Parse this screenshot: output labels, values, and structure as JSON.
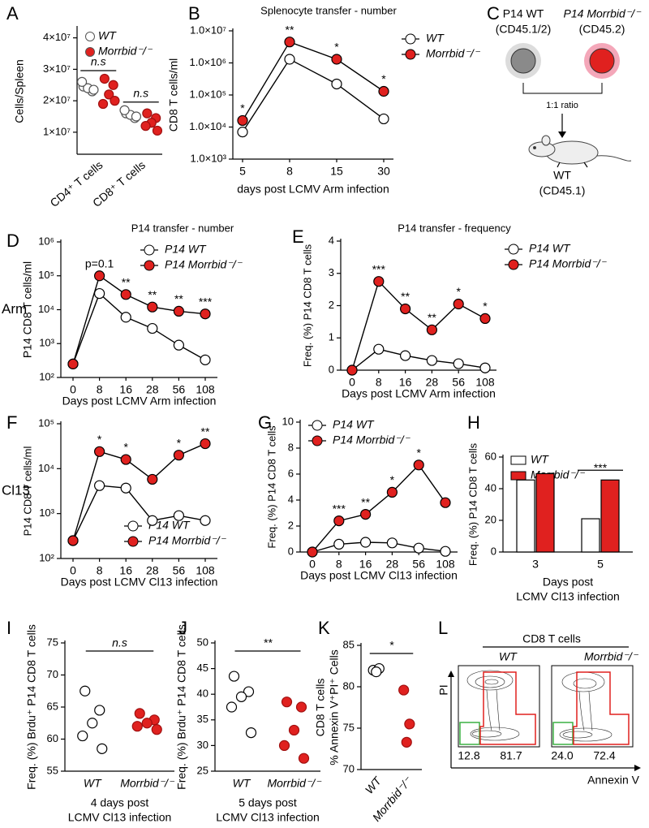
{
  "chart_data": [
    {
      "label": "A",
      "type": "dot",
      "ylabel": "Cells/Spleen",
      "categories": [
        "CD4⁺ T cells",
        "CD8⁺ T cells"
      ],
      "series": [
        {
          "name": "WT",
          "color": "#ffffff",
          "values": [
            [
              24500000,
              23000000,
              24000000,
              26000000,
              23500000
            ],
            [
              16000000,
              14500000,
              15500000,
              17000000,
              15000000
            ]
          ]
        },
        {
          "name": "Morrbid⁻/⁻",
          "color": "#e0211f",
          "values": [
            [
              27000000,
              25000000,
              22000000,
              19000000,
              20000000
            ],
            [
              16000000,
              14500000,
              13000000,
              12000000,
              10500000
            ]
          ]
        }
      ],
      "ylim": [
        3000000,
        43000000
      ],
      "yticks": [
        {
          "value": 10000000,
          "label": "1×10⁷"
        },
        {
          "value": 20000000,
          "label": "2×10⁷"
        },
        {
          "value": 30000000,
          "label": "3×10⁷"
        },
        {
          "value": 40000000,
          "label": "4×10⁷"
        }
      ],
      "annotations": [
        "n.s",
        "n.s"
      ],
      "legend": "upper right"
    },
    {
      "label": "B",
      "type": "line",
      "title": "Splenocyte transfer - number",
      "xlabel": "days post LCMV Arm infection",
      "ylabel": "CD8 T cells/ml",
      "categories": [
        "5",
        "8",
        "15",
        "30"
      ],
      "log": true,
      "ylim": [
        1000,
        10000000
      ],
      "yticks": [
        {
          "value": 1000,
          "label": "1.0×10³"
        },
        {
          "value": 10000,
          "label": "1.0×10⁴"
        },
        {
          "value": 100000,
          "label": "1.0×10⁵"
        },
        {
          "value": 1000000,
          "label": "1.0×10⁶"
        },
        {
          "value": 10000000,
          "label": "1.0×10⁷"
        }
      ],
      "series": [
        {
          "name": "WT",
          "color": "#ffffff",
          "values": [
            7000,
            1300000,
            220000,
            18000
          ]
        },
        {
          "name": "Morrbid⁻/⁻",
          "color": "#e0211f",
          "values": [
            16000,
            4500000,
            1300000,
            130000
          ]
        }
      ],
      "annotations": [
        "*",
        "**",
        "*",
        "*"
      ],
      "legend": "right"
    },
    {
      "label": "D",
      "type": "line",
      "title": "P14 transfer - number",
      "row_label": "Arm",
      "xlabel": "Days post LCMV Arm infection",
      "ylabel": "P14 CD8 T cells/ml",
      "categories": [
        "0",
        "8",
        "16",
        "28",
        "56",
        "108"
      ],
      "log": true,
      "ylim": [
        100,
        1000000
      ],
      "yticks": [
        {
          "value": 100,
          "label": "10²"
        },
        {
          "value": 1000,
          "label": "10³"
        },
        {
          "value": 10000,
          "label": "10⁴"
        },
        {
          "value": 100000,
          "label": "10⁵"
        },
        {
          "value": 1000000,
          "label": "10⁶"
        }
      ],
      "series": [
        {
          "name": "P14 WT",
          "color": "#ffffff",
          "values": [
            250,
            30000,
            6000,
            2800,
            900,
            330
          ]
        },
        {
          "name": "P14 Morrbid⁻/⁻",
          "color": "#e0211f",
          "values": [
            250,
            100000,
            28000,
            12000,
            9000,
            7500
          ]
        }
      ],
      "annotations": [
        null,
        "p=0.1",
        "**",
        "**",
        "**",
        "***"
      ],
      "legend": "upper right"
    },
    {
      "label": "E",
      "type": "line",
      "title": "P14 transfer - frequency",
      "xlabel": "Days post LCMV Arm infection",
      "ylabel": "Freq. (%) P14 CD8 T cells",
      "categories": [
        "0",
        "8",
        "16",
        "28",
        "56",
        "108"
      ],
      "ylim": [
        0,
        4
      ],
      "yticks": [
        0,
        1,
        2,
        3,
        4
      ],
      "series": [
        {
          "name": "P14 WT",
          "color": "#ffffff",
          "values": [
            0,
            0.65,
            0.45,
            0.3,
            0.2,
            0.07
          ]
        },
        {
          "name": "P14 Morrbid⁻/⁻",
          "color": "#e0211f",
          "values": [
            0,
            2.75,
            1.9,
            1.25,
            2.05,
            1.6
          ]
        }
      ],
      "annotations": [
        null,
        "***",
        "**",
        "**",
        "*",
        "*"
      ],
      "legend": "right"
    },
    {
      "label": "F",
      "type": "line",
      "row_label": "Cl13",
      "xlabel": "Days post LCMV Cl13 infection",
      "ylabel": "P14 CD8 T cells/ml",
      "categories": [
        "0",
        "8",
        "16",
        "28",
        "56",
        "108"
      ],
      "log": true,
      "ylim": [
        100,
        100000
      ],
      "yticks": [
        {
          "value": 100,
          "label": "10²"
        },
        {
          "value": 1000,
          "label": "10³"
        },
        {
          "value": 10000,
          "label": "10⁴"
        },
        {
          "value": 100000,
          "label": "10⁵"
        }
      ],
      "series": [
        {
          "name": "P14 WT",
          "color": "#ffffff",
          "values": [
            250,
            4200,
            3700,
            700,
            900,
            700
          ]
        },
        {
          "name": "P14 Morrbid⁻/⁻",
          "color": "#e0211f",
          "values": [
            250,
            24000,
            16000,
            5800,
            20000,
            36000
          ]
        }
      ],
      "annotations": [
        null,
        "*",
        "*",
        null,
        "*",
        "**"
      ],
      "legend": "lower right"
    },
    {
      "label": "G",
      "type": "line",
      "xlabel": "Days post LCMV Cl13 infection",
      "ylabel": "Freq. (%) P14 CD8 T cells",
      "categories": [
        "0",
        "8",
        "16",
        "28",
        "56",
        "108"
      ],
      "ylim": [
        0,
        10
      ],
      "yticks": [
        0,
        2,
        4,
        6,
        8,
        10
      ],
      "series": [
        {
          "name": "P14 WT",
          "color": "#ffffff",
          "values": [
            0,
            0.6,
            0.75,
            0.7,
            0.3,
            0.05
          ]
        },
        {
          "name": "P14 Morrbid⁻/⁻",
          "color": "#e0211f",
          "values": [
            0,
            2.4,
            2.9,
            4.6,
            6.7,
            3.8
          ]
        }
      ],
      "annotations": [
        null,
        "***",
        "**",
        "*",
        "*",
        null
      ],
      "legend": "upper left"
    },
    {
      "label": "H",
      "type": "bar",
      "xlabel": [
        "Days post",
        "LCMV Cl13 infection"
      ],
      "ylabel": "Freq. (%) P14 CD8 T cells",
      "categories": [
        "3",
        "5"
      ],
      "ylim": [
        0,
        60
      ],
      "yticks": [
        0,
        20,
        40,
        60
      ],
      "series": [
        {
          "name": "WT",
          "color": "#ffffff",
          "values": [
            45.5,
            21
          ]
        },
        {
          "name": "Morrbid⁻/⁻",
          "color": "#e0211f",
          "values": [
            49.5,
            45.5
          ]
        }
      ],
      "annotations": [
        null,
        "***"
      ],
      "legend": "upper left"
    },
    {
      "label": "I",
      "type": "dot",
      "xlabel": [
        "4 days post",
        "LCMV Cl13 infection"
      ],
      "ylabel": "Freq. (%) Brdu⁺ P14 CD8 T cells",
      "categories": [
        "WT",
        "Morrbid⁻/⁻"
      ],
      "colors": [
        "#ffffff",
        "#e0211f"
      ],
      "values": [
        [
          67.5,
          64.5,
          62.5,
          60.5,
          58.5
        ],
        [
          64,
          63,
          62.5,
          62,
          61.5
        ]
      ],
      "ylim": [
        55,
        75
      ],
      "yticks": [
        55,
        60,
        65,
        70,
        75
      ],
      "annotation": "n.s"
    },
    {
      "label": "J",
      "type": "dot",
      "xlabel": [
        "5 days post",
        "LCMV Cl13 infection"
      ],
      "ylabel": "Freq. (%) Brdu⁺ P14 CD8 T cells",
      "categories": [
        "WT",
        "Morrbid⁻/⁻"
      ],
      "colors": [
        "#ffffff",
        "#e0211f"
      ],
      "values": [
        [
          43.5,
          40.5,
          39.5,
          37.5,
          32.5
        ],
        [
          38.5,
          37.5,
          33,
          30,
          27.5
        ]
      ],
      "ylim": [
        25,
        50
      ],
      "yticks": [
        25,
        30,
        35,
        40,
        45,
        50
      ],
      "annotation": "**"
    },
    {
      "label": "K",
      "type": "dot",
      "ylabel": [
        "CD8 T cells",
        "% Annexin V⁺PI⁺ Cells"
      ],
      "categories": [
        "WT",
        "Morrbid⁻/⁻"
      ],
      "colors": [
        "#ffffff",
        "#e0211f"
      ],
      "values": [
        [
          82,
          82.2,
          81.8
        ],
        [
          79.6,
          75.5,
          73.3
        ]
      ],
      "ylim": [
        70,
        85
      ],
      "yticks": [
        70,
        75,
        80,
        85
      ],
      "annotation": "*"
    }
  ],
  "diagram_c": {
    "label": "C",
    "left": {
      "title": "P14 WT",
      "subtitle": "(CD45.1/2)"
    },
    "right": {
      "title": "P14 Morrbid⁻/⁻",
      "subtitle": "(CD45.2)"
    },
    "ratio": "1:1 ratio",
    "recipient": {
      "title": "WT",
      "subtitle": "(CD45.1)"
    }
  },
  "flow_l": {
    "label": "L",
    "title": "CD8 T cells",
    "y_axis": "PI",
    "x_axis": "Annexin V",
    "plots": [
      {
        "name": "WT",
        "gates": [
          "12.8",
          "81.7"
        ]
      },
      {
        "name": "Morrbid⁻/⁻",
        "gates": [
          "24.0",
          "72.4"
        ]
      }
    ]
  }
}
